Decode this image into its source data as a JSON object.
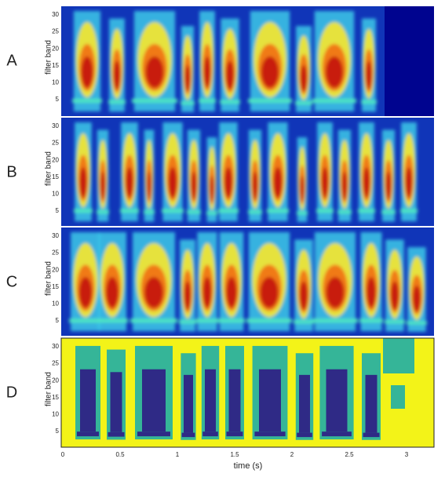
{
  "panels": [
    {
      "label": "A",
      "y_label": "filter band",
      "y_ticks": [
        5,
        10,
        15,
        20,
        25,
        30
      ]
    },
    {
      "label": "B",
      "y_label": "filter band",
      "y_ticks": [
        5,
        10,
        15,
        20,
        25,
        30
      ]
    },
    {
      "label": "C",
      "y_label": "filter band",
      "y_ticks": [
        5,
        10,
        15,
        20,
        25,
        30
      ]
    },
    {
      "label": "D",
      "y_label": "filter band",
      "y_ticks": [
        5,
        10,
        15,
        20,
        25,
        30
      ]
    }
  ],
  "x_axis": {
    "label": "time (s)",
    "ticks": [
      0,
      0.5,
      1,
      1.5,
      2,
      2.5,
      3
    ]
  }
}
